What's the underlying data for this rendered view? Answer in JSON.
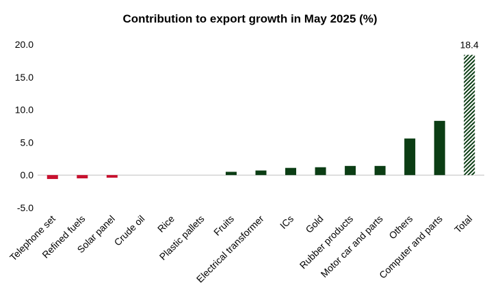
{
  "chart_data": {
    "type": "bar",
    "title": "Contribution to export growth in May 2025 (%)",
    "xlabel": "",
    "ylabel": "",
    "ylim": [
      -5.0,
      20.0
    ],
    "yticks": [
      "20.0",
      "15.0",
      "10.0",
      "5.0",
      "0.0",
      "-5.0"
    ],
    "categories": [
      "Telephone set",
      "Refined fuels",
      "Solar panel",
      "Crude oil",
      "Rice",
      "Plastic pallets",
      "Fruits",
      "Electrical transformer",
      "ICs",
      "Gold",
      "Rubber products",
      "Motor car and parts",
      "Others",
      "Computer and parts",
      "Total"
    ],
    "values": [
      -0.6,
      -0.5,
      -0.4,
      0.0,
      0.0,
      0.0,
      0.5,
      0.7,
      1.1,
      1.2,
      1.4,
      1.4,
      5.6,
      8.3,
      18.4
    ],
    "data_labels": [
      {
        "category": "Total",
        "text": "18.4"
      }
    ],
    "colors": {
      "positive": "#0b3d14",
      "negative": "#c8102e",
      "total_pattern_fg": "#0b3d14",
      "total_pattern_bg": "#ffffff",
      "axis": "#bfbfbf"
    },
    "grid": false,
    "legend": "none"
  }
}
